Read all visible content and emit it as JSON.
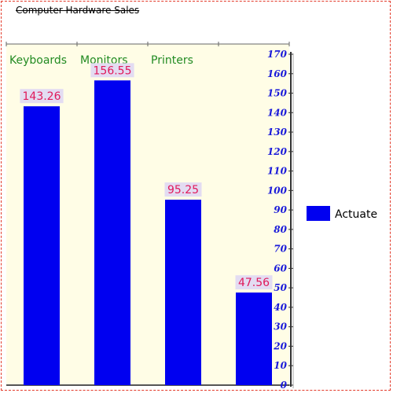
{
  "chart_data": {
    "type": "bar",
    "title": "Computer Hardware Sales",
    "categories": [
      "Keyboards",
      "Monitors",
      "Printers",
      ""
    ],
    "series": [
      {
        "name": "Actuate",
        "values": [
          143.26,
          156.55,
          95.25,
          47.56
        ]
      }
    ],
    "ylim": [
      0,
      170
    ],
    "yticks": [
      0,
      10,
      20,
      30,
      40,
      50,
      60,
      70,
      80,
      90,
      100,
      110,
      120,
      130,
      140,
      150,
      160,
      170
    ],
    "y_axis_position": "right",
    "category_labels_position": "top",
    "legend_position": "right",
    "grid": false
  },
  "colors": {
    "bar": "#0000f0",
    "plot_background": "#fffde6",
    "value_label_background": "#e3dcf2",
    "value_label_text": "#e0195a",
    "category_label": "#228b22",
    "tick_label": "#1a1ad9",
    "border": "#e33a2a"
  }
}
